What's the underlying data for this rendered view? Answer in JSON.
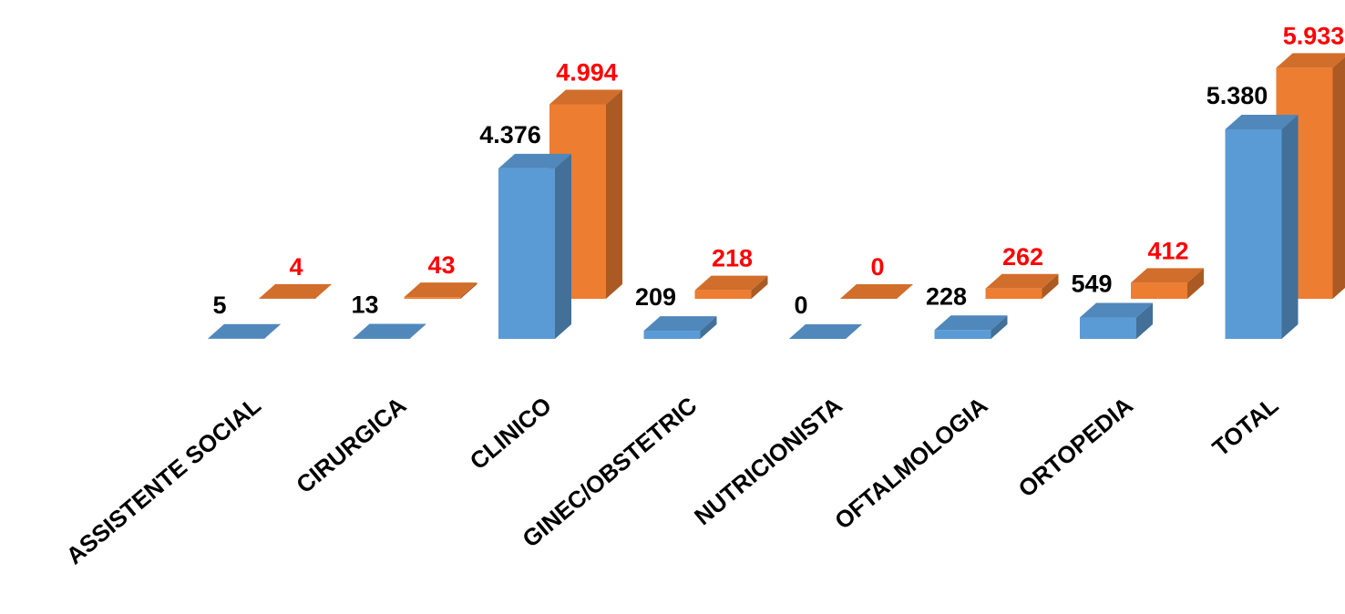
{
  "chart_data": {
    "type": "bar",
    "categories": [
      "ASSISTENTE SOCIAL",
      "CIRURGICA",
      "CLINICO",
      "GINEC/OBSTETRIC",
      "NUTRICIONISTA",
      "OFTALMOLOGIA",
      "ORTOPEDIA",
      "TOTAL"
    ],
    "series": [
      {
        "values": [
          5,
          13,
          4376,
          209,
          0,
          228,
          549,
          5380
        ],
        "labels": [
          "5",
          "13",
          "4.376",
          "209",
          "0",
          "228",
          "549",
          "5.380"
        ],
        "color": "#5B9BD5",
        "label_color": "#000000"
      },
      {
        "values": [
          4,
          43,
          4994,
          218,
          0,
          262,
          412,
          5933
        ],
        "labels": [
          "4",
          "43",
          "4.994",
          "218",
          "0",
          "262",
          "412",
          "5.933"
        ],
        "color": "#ED7D31",
        "label_color": "#FF0000"
      }
    ],
    "style": "3d-clustered-column",
    "grid": false,
    "legend": "none"
  }
}
